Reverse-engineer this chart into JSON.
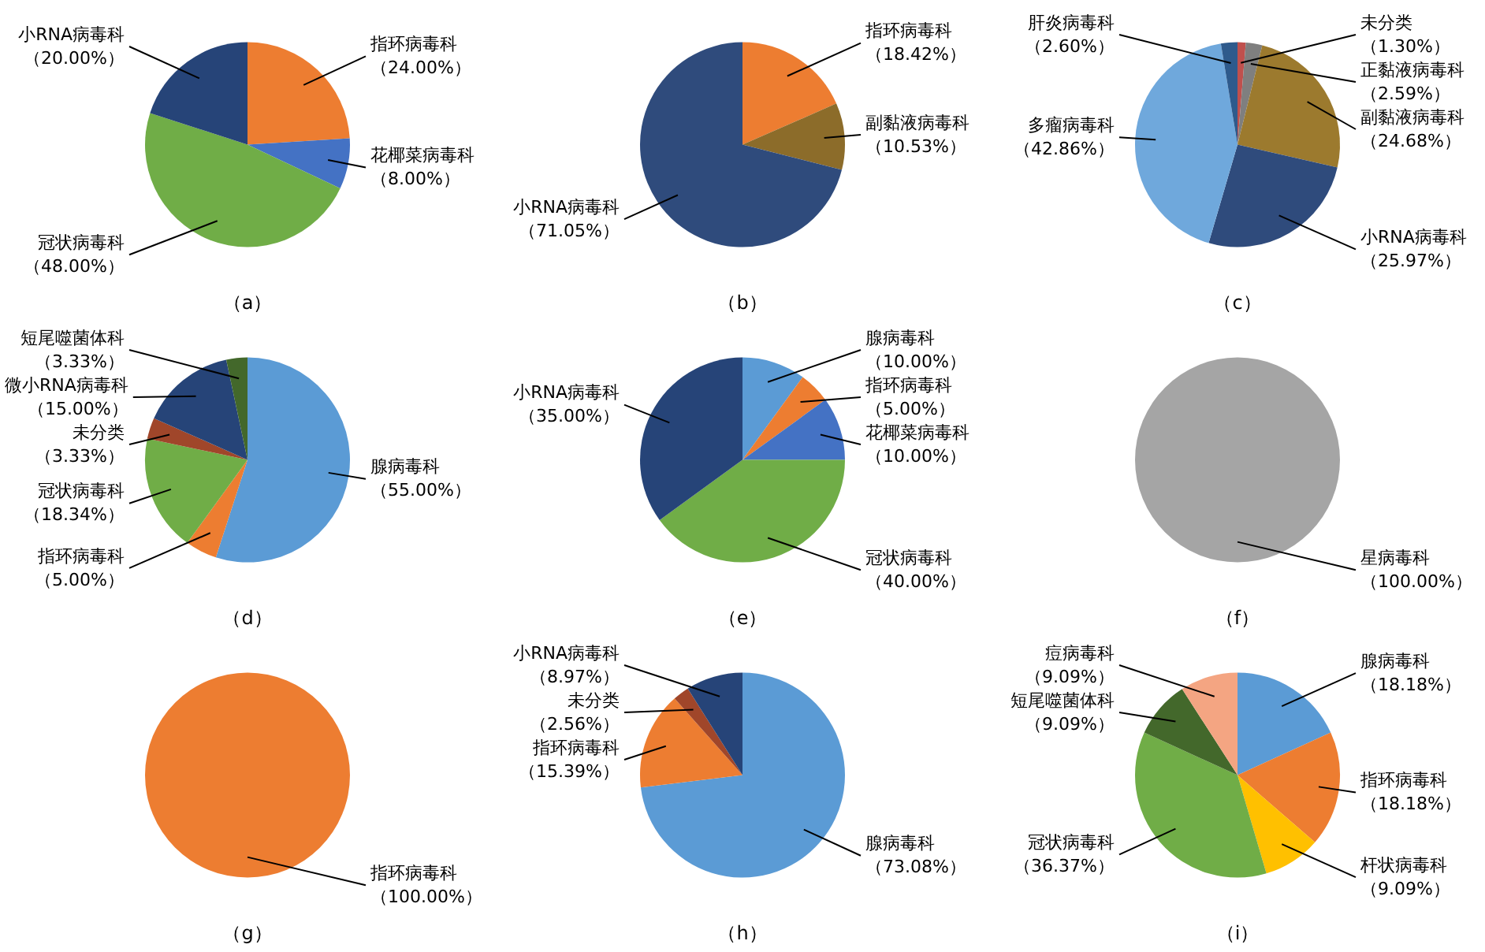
{
  "chart_data": [
    {
      "type": "pie",
      "title": "（a）",
      "categories": [
        "指环病毒科",
        "花椰菜病毒科",
        "冠状病毒科",
        "小RNA病毒科"
      ],
      "values": [
        24,
        8,
        48,
        20
      ],
      "colors": [
        "#ed7d31",
        "#4472c4",
        "#70ad47",
        "#264478"
      ],
      "value_labels": [
        "（24.00%）",
        "（8.00%）",
        "（48.00%）",
        "（20.00%）"
      ]
    },
    {
      "type": "pie",
      "title": "（b）",
      "categories": [
        "指环病毒科",
        "副黏液病毒科",
        "小RNA病毒科"
      ],
      "values": [
        18.42,
        10.53,
        71.05
      ],
      "colors": [
        "#ed7d31",
        "#8c6c2a",
        "#2f4b7c"
      ],
      "value_labels": [
        "（18.42%）",
        "（10.53%）",
        "（71.05%）"
      ]
    },
    {
      "type": "pie",
      "title": "（c）",
      "categories": [
        "未分类",
        "正黏液病毒科",
        "副黏液病毒科",
        "小RNA病毒科",
        "多瘤病毒科",
        "肝炎病毒科"
      ],
      "values": [
        1.3,
        2.59,
        24.68,
        25.97,
        42.86,
        2.6
      ],
      "colors": [
        "#c0504d",
        "#7f7f7f",
        "#9c7a2e",
        "#2f4b7c",
        "#6fa8dc",
        "#2e5a8c"
      ],
      "value_labels": [
        "（1.30%）",
        "（2.59%）",
        "（24.68%）",
        "（25.97%）",
        "（42.86%）",
        "（2.60%）"
      ]
    },
    {
      "type": "pie",
      "title": "（d）",
      "categories": [
        "腺病毒科",
        "指环病毒科",
        "冠状病毒科",
        "未分类",
        "微小RNA病毒科",
        "短尾噬菌体科"
      ],
      "values": [
        55,
        5,
        18.34,
        3.33,
        15,
        3.33
      ],
      "colors": [
        "#5b9bd5",
        "#ed7d31",
        "#70ad47",
        "#a0462a",
        "#264478",
        "#43682b"
      ],
      "value_labels": [
        "（55.00%）",
        "（5.00%）",
        "（18.34%）",
        "（3.33%）",
        "（15.00%）",
        "（3.33%）"
      ]
    },
    {
      "type": "pie",
      "title": "（e）",
      "categories": [
        "腺病毒科",
        "指环病毒科",
        "花椰菜病毒科",
        "冠状病毒科",
        "小RNA病毒科"
      ],
      "values": [
        10,
        5,
        10,
        40,
        35
      ],
      "colors": [
        "#5b9bd5",
        "#ed7d31",
        "#4472c4",
        "#70ad47",
        "#264478"
      ],
      "value_labels": [
        "（10.00%）",
        "（5.00%）",
        "（10.00%）",
        "（40.00%）",
        "（35.00%）"
      ]
    },
    {
      "type": "pie",
      "title": "（f）",
      "categories": [
        "星病毒科"
      ],
      "values": [
        100
      ],
      "colors": [
        "#a5a5a5"
      ],
      "value_labels": [
        "（100.00%）"
      ]
    },
    {
      "type": "pie",
      "title": "（g）",
      "categories": [
        "指环病毒科"
      ],
      "values": [
        100
      ],
      "colors": [
        "#ed7d31"
      ],
      "value_labels": [
        "（100.00%）"
      ]
    },
    {
      "type": "pie",
      "title": "（h）",
      "categories": [
        "腺病毒科",
        "指环病毒科",
        "未分类",
        "小RNA病毒科"
      ],
      "values": [
        73.08,
        15.39,
        2.56,
        8.97
      ],
      "colors": [
        "#5b9bd5",
        "#ed7d31",
        "#a0462a",
        "#264478"
      ],
      "value_labels": [
        "（73.08%）",
        "（15.39%）",
        "（2.56%）",
        "（8.97%）"
      ]
    },
    {
      "type": "pie",
      "title": "（i）",
      "categories": [
        "腺病毒科",
        "指环病毒科",
        "杆状病毒科",
        "冠状病毒科",
        "短尾噬菌体科",
        "痘病毒科"
      ],
      "values": [
        18.18,
        18.18,
        9.09,
        36.37,
        9.09,
        9.09
      ],
      "colors": [
        "#5b9bd5",
        "#ed7d31",
        "#ffc000",
        "#70ad47",
        "#43682b",
        "#f4a582"
      ],
      "value_labels": [
        "（18.18%）",
        "（18.18%）",
        "（9.09%）",
        "（36.37%）",
        "（9.09%）",
        "（9.09%）"
      ]
    }
  ]
}
